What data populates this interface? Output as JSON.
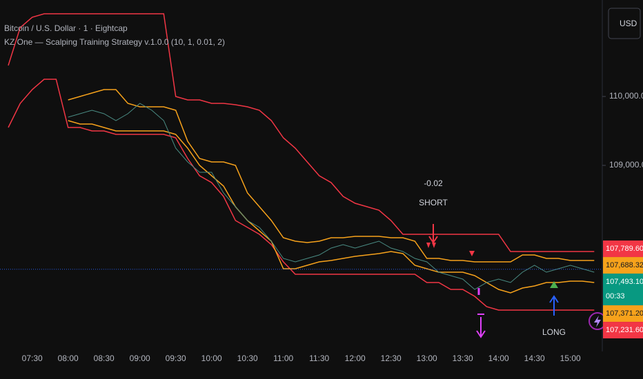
{
  "chart_data": {
    "type": "line",
    "title": "Bitcoin / U.S. Dollar · 1 · Eightcap",
    "subtitle": "KZ One — Scalping Training Strategy v.1.0.0 (10, 1, 0.01, 2)",
    "currency": "USD",
    "annotations": [
      "-0.02",
      "SHORT",
      "LONG"
    ],
    "x": [
      "07:10",
      "07:20",
      "07:30",
      "07:40",
      "07:50",
      "08:00",
      "08:10",
      "08:20",
      "08:30",
      "08:40",
      "08:50",
      "09:00",
      "09:10",
      "09:20",
      "09:30",
      "09:40",
      "09:50",
      "10:00",
      "10:10",
      "10:20",
      "10:30",
      "10:40",
      "10:50",
      "11:00",
      "11:10",
      "11:20",
      "11:30",
      "11:40",
      "11:50",
      "12:00",
      "12:10",
      "12:20",
      "12:30",
      "12:40",
      "12:50",
      "13:00",
      "13:10",
      "13:20",
      "13:30",
      "13:40",
      "13:50",
      "14:00",
      "14:10",
      "14:20",
      "14:30",
      "14:40",
      "14:50",
      "15:00",
      "15:10",
      "15:20"
    ],
    "xticks": [
      "07:30",
      "08:00",
      "08:30",
      "09:00",
      "09:30",
      "10:00",
      "10:30",
      "11:00",
      "11:30",
      "12:00",
      "12:30",
      "13:00",
      "13:30",
      "14:00",
      "14:30",
      "15:00"
    ],
    "ylim": [
      106300,
      111400
    ],
    "yticks": [
      {
        "value": 110000,
        "label": "110,000.00"
      },
      {
        "value": 109000,
        "label": "109,000.00"
      }
    ],
    "series": [
      {
        "color": "#f23645",
        "values": [
          110450,
          111000,
          111150,
          111200,
          111200,
          111200,
          111200,
          111200,
          111200,
          111200,
          111200,
          111200,
          111200,
          111200,
          110000,
          109950,
          109950,
          109900,
          109900,
          109880,
          109850,
          109800,
          109650,
          109400,
          109250,
          109050,
          108850,
          108750,
          108550,
          108450,
          108400,
          108350,
          108200,
          108000,
          108000,
          108000,
          108000,
          108000,
          108000,
          108000,
          108000,
          108000,
          107750,
          107750,
          107750,
          107750,
          107750,
          107750,
          107750,
          107750
        ]
      },
      {
        "color": "#f23645",
        "values": [
          109550,
          109900,
          110100,
          110250,
          110250,
          109550,
          109550,
          109500,
          109500,
          109450,
          109450,
          109450,
          109450,
          109450,
          109400,
          109100,
          108850,
          108750,
          108550,
          108200,
          108100,
          108000,
          107850,
          107600,
          107420,
          107420,
          107420,
          107420,
          107420,
          107420,
          107420,
          107420,
          107420,
          107420,
          107420,
          107300,
          107300,
          107200,
          107200,
          107100,
          106950,
          106900,
          106900,
          106900,
          106900,
          106900,
          106900,
          106900,
          106900,
          106900
        ]
      },
      {
        "color": "#f7a21b",
        "values": [
          null,
          null,
          null,
          null,
          null,
          109950,
          110000,
          110050,
          110100,
          110100,
          109900,
          109850,
          109850,
          109850,
          109800,
          109350,
          109100,
          109050,
          109050,
          109000,
          108600,
          108400,
          108200,
          107950,
          107900,
          107880,
          107900,
          107950,
          107950,
          107970,
          107970,
          107970,
          107950,
          107950,
          107900,
          107650,
          107650,
          107620,
          107620,
          107600,
          107600,
          107600,
          107600,
          107700,
          107700,
          107650,
          107650,
          107620,
          107620,
          107620
        ]
      },
      {
        "color": "#f7a21b",
        "values": [
          null,
          null,
          null,
          null,
          null,
          109650,
          109600,
          109600,
          109550,
          109500,
          109500,
          109500,
          109500,
          109500,
          109450,
          109250,
          109000,
          108850,
          108700,
          108400,
          108200,
          108050,
          107900,
          107500,
          107500,
          107550,
          107600,
          107620,
          107650,
          107680,
          107700,
          107720,
          107750,
          107720,
          107550,
          107500,
          107450,
          107450,
          107450,
          107400,
          107300,
          107200,
          107150,
          107220,
          107250,
          107300,
          107300,
          107320,
          107320,
          107300
        ]
      },
      {
        "color": "#4a8c84",
        "values": [
          null,
          null,
          null,
          null,
          null,
          109700,
          109750,
          109800,
          109750,
          109650,
          109750,
          109900,
          109800,
          109650,
          109250,
          109050,
          108900,
          108900,
          108600,
          108400,
          108200,
          108100,
          107900,
          107650,
          107600,
          107650,
          107700,
          107800,
          107850,
          107800,
          107850,
          107900,
          107800,
          107750,
          107650,
          107600,
          107450,
          107400,
          107350,
          107200,
          107300,
          107350,
          107300,
          107450,
          107550,
          107450,
          107500,
          107550,
          107500,
          107450
        ]
      }
    ],
    "last_price": {
      "value": 107493.1,
      "label": "107,493.10",
      "color": "#089981",
      "countdown": "00:33"
    },
    "price_labels": [
      {
        "value": 107789.6,
        "label": "107,789.60",
        "color": "#f23645"
      },
      {
        "value": 107688.32,
        "label": "107,688.32",
        "color": "#f7a21b"
      },
      {
        "value": 107371.2,
        "label": "107,371.20",
        "color": "#f7a21b"
      },
      {
        "value": 107231.6,
        "label": "107,231.60",
        "color": "#f23645"
      }
    ]
  }
}
